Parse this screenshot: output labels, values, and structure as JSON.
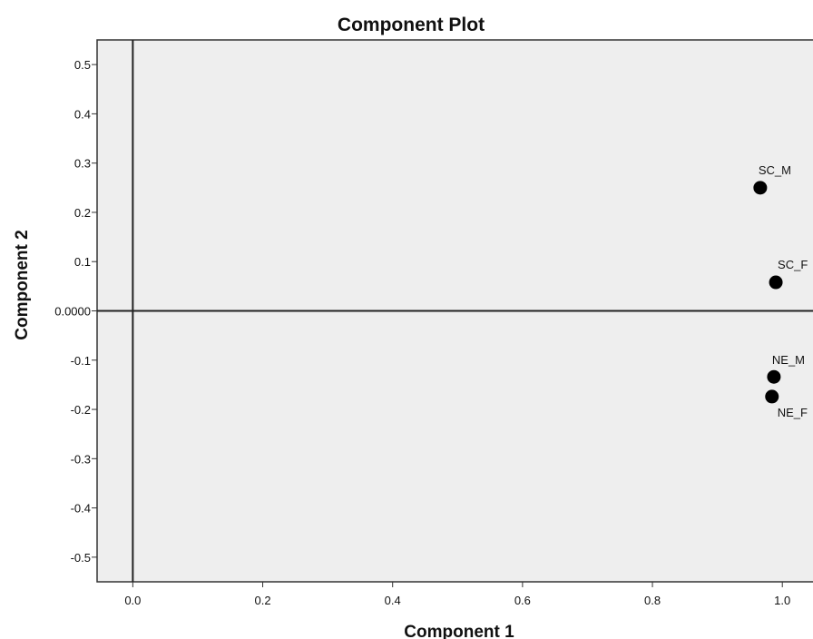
{
  "chart_data": {
    "type": "scatter",
    "title": "Component Plot",
    "xlabel": "Component 1",
    "ylabel": "Component 2",
    "xlim": [
      -0.055,
      1.05
    ],
    "ylim": [
      -0.55,
      0.55
    ],
    "x_ticks": [
      0.0,
      0.2,
      0.4,
      0.6,
      0.8,
      1.0
    ],
    "x_tick_labels": [
      "0.0",
      "0.2",
      "0.4",
      "0.6",
      "0.8",
      "1.0"
    ],
    "y_ticks": [
      0.5,
      0.4,
      0.3,
      0.2,
      0.1,
      0.0,
      -0.1,
      -0.2,
      -0.3,
      -0.4,
      -0.5
    ],
    "y_tick_labels": [
      "0.5",
      "0.4",
      "0.3",
      "0.2",
      "0.1",
      "0.0000",
      "-0.1",
      "-0.2",
      "-0.3",
      "-0.4",
      "-0.5"
    ],
    "reference_lines": {
      "x": 0.0,
      "y": 0.0
    },
    "points": [
      {
        "label": "SC_M",
        "x": 0.966,
        "y": 0.25
      },
      {
        "label": "SC_F",
        "x": 0.99,
        "y": 0.058
      },
      {
        "label": "NE_M",
        "x": 0.987,
        "y": -0.134
      },
      {
        "label": "NE_F",
        "x": 0.984,
        "y": -0.174
      }
    ],
    "grid": false,
    "legend": "none",
    "colors": {
      "plot_background": "#eeeeee",
      "marker": "#000000",
      "reference_line": "#222222"
    }
  }
}
